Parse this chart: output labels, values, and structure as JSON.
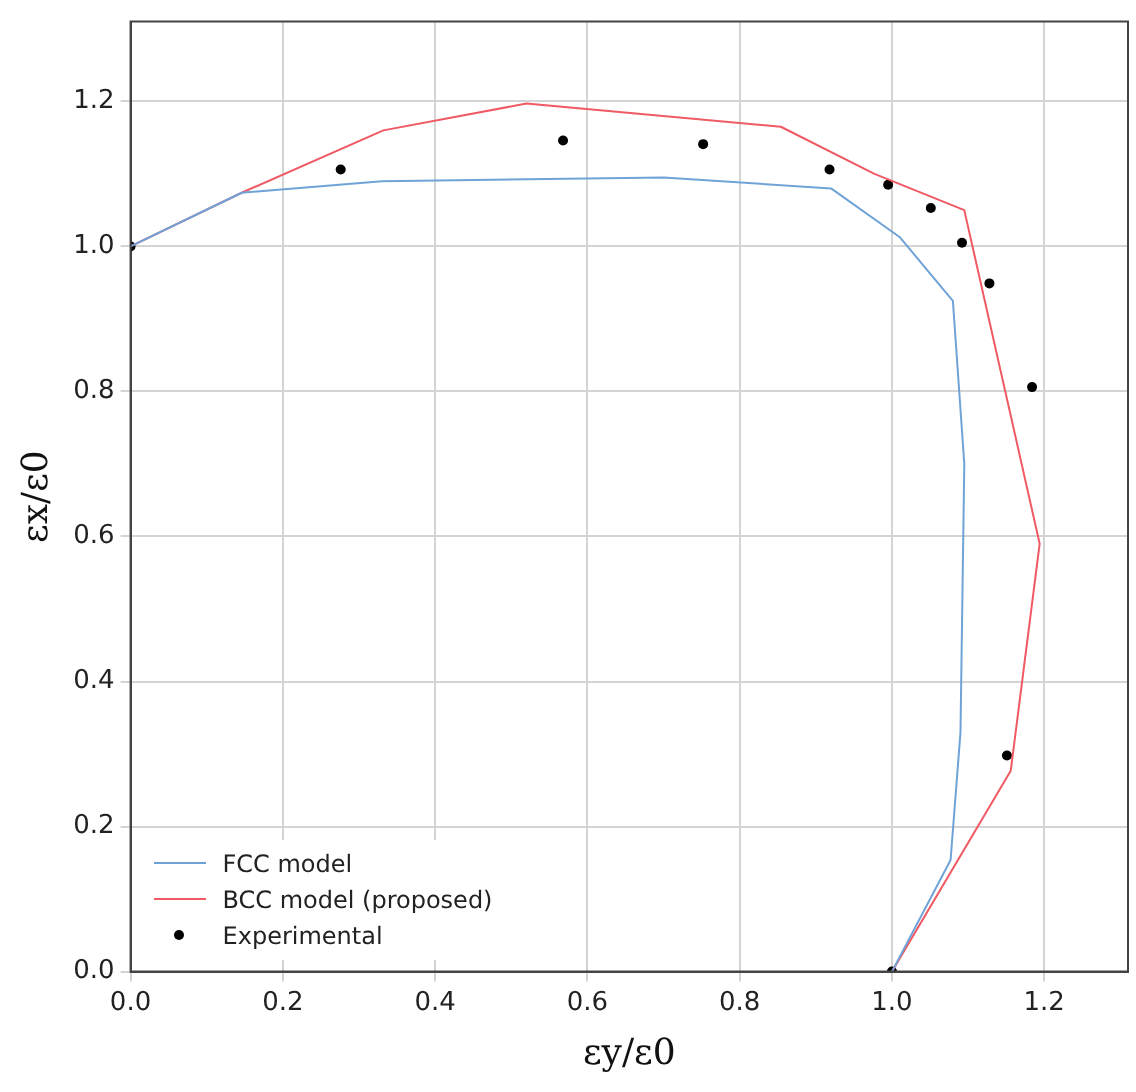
{
  "chart_data": {
    "type": "line",
    "xlabel": "εy/ε0",
    "ylabel": "εx/ε0",
    "xlim": [
      0,
      1.31
    ],
    "ylim": [
      0,
      1.31
    ],
    "xticks": [
      {
        "value": 0,
        "label": "0.0"
      },
      {
        "value": 0.2,
        "label": "0.2"
      },
      0.4,
      0.6,
      0.8,
      {
        "value": 1,
        "label": "1.0"
      },
      1.2
    ],
    "yticks": [
      {
        "value": 0,
        "label": "0.0"
      },
      0.2,
      0.4,
      0.6,
      0.8,
      {
        "value": 1,
        "label": "1.0"
      },
      1.2
    ],
    "grid": true,
    "legend": "bottom left",
    "series": [
      {
        "name": "FCC model",
        "color": "#6fa3d8",
        "marker": "none",
        "x": [
          0,
          0.146,
          0.33,
          0.7,
          0.92,
          1.01,
          1.08,
          1.095,
          1.09,
          1.077,
          1.0
        ],
        "values": [
          1.0,
          1.074,
          1.09,
          1.095,
          1.08,
          1.013,
          0.925,
          0.7,
          0.33,
          0.154,
          0
        ]
      },
      {
        "name": "BCC model (proposed)",
        "color": "#ef5a64",
        "marker": "none",
        "x": [
          0,
          0.146,
          0.332,
          0.52,
          0.854,
          0.977,
          1.095,
          1.194,
          1.156,
          1.0
        ],
        "values": [
          1.0,
          1.074,
          1.16,
          1.197,
          1.165,
          1.1,
          1.05,
          0.59,
          0.277,
          0
        ]
      },
      {
        "name": "Experimental",
        "type": "scatter",
        "color": "#000000",
        "marker": "circle",
        "x": [
          0,
          0.276,
          0.568,
          0.752,
          0.918,
          0.995,
          1.051,
          1.092,
          1.128,
          1.184,
          1.151,
          1.0
        ],
        "values": [
          1.0,
          1.106,
          1.146,
          1.141,
          1.106,
          1.085,
          1.053,
          1.005,
          0.949,
          0.806,
          0.298,
          0
        ]
      }
    ]
  }
}
